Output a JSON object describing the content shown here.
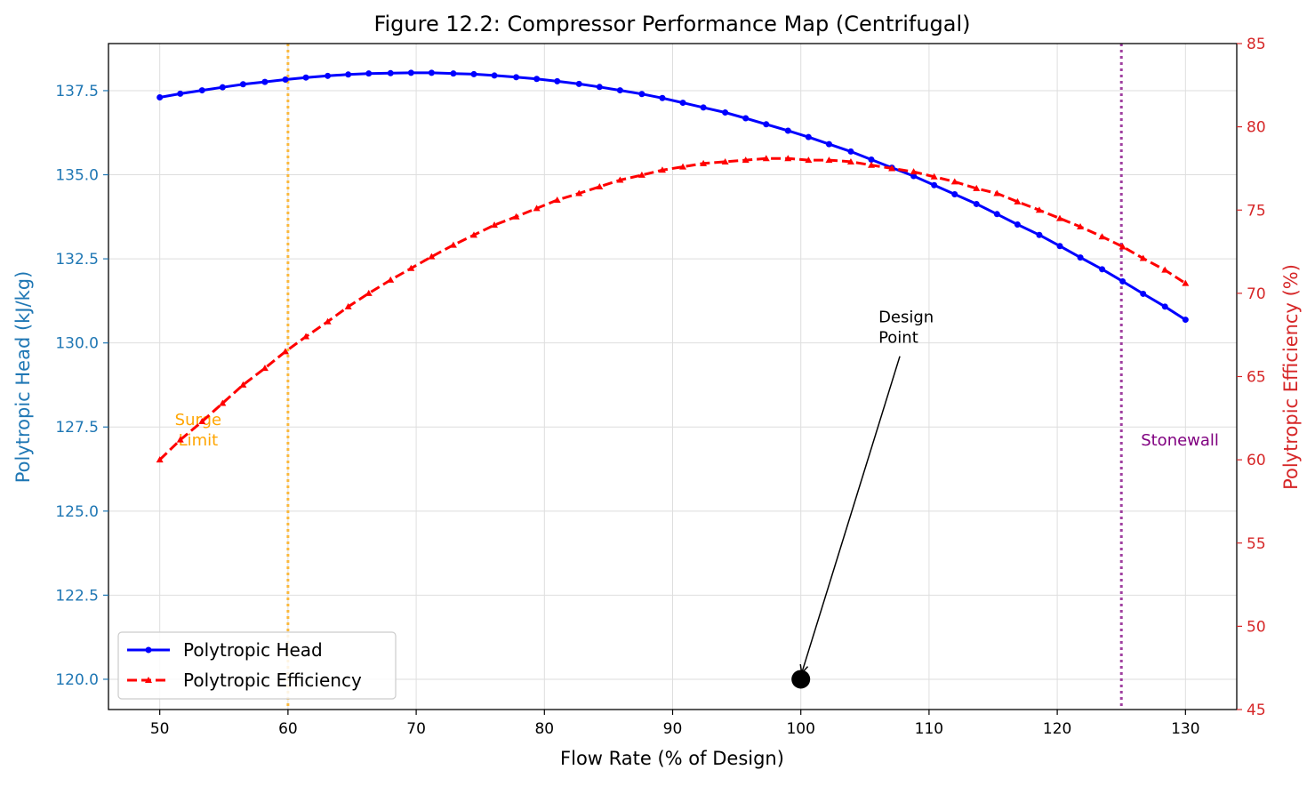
{
  "chart_data": {
    "type": "line",
    "title": "Figure 12.2: Compressor Performance Map (Centrifugal)",
    "xlabel": "Flow Rate (% of Design)",
    "ylabel_left": "Polytropic Head (kJ/kg)",
    "ylabel_right": "Polytropic Efficiency (%)",
    "xlim": [
      46,
      134
    ],
    "ylim_left": [
      119.1,
      138.9
    ],
    "ylim_right": [
      45,
      85
    ],
    "x_ticks": [
      50,
      60,
      70,
      80,
      90,
      100,
      110,
      120,
      130
    ],
    "y_left_ticks": [
      "120.0",
      "122.5",
      "125.0",
      "127.5",
      "130.0",
      "132.5",
      "135.0",
      "137.5"
    ],
    "y_right_ticks": [
      45,
      50,
      55,
      60,
      65,
      70,
      75,
      80,
      85
    ],
    "grid": true,
    "legend_position": "lower-left",
    "x": [
      50.0,
      51.6,
      53.3,
      54.9,
      56.5,
      58.2,
      59.8,
      61.4,
      63.1,
      64.7,
      66.3,
      68.0,
      69.6,
      71.2,
      72.9,
      74.5,
      76.1,
      77.8,
      79.4,
      81.0,
      82.7,
      84.3,
      85.9,
      87.6,
      89.2,
      90.8,
      92.4,
      94.1,
      95.7,
      97.3,
      99.0,
      100.6,
      102.2,
      103.9,
      105.5,
      107.1,
      108.8,
      110.4,
      112.0,
      113.7,
      115.3,
      116.9,
      118.6,
      120.2,
      121.8,
      123.5,
      125.1,
      126.7,
      128.4,
      130.0
    ],
    "series": [
      {
        "name": "Polytropic Head",
        "axis": "left",
        "color": "#0000ff",
        "line_style": "solid",
        "marker": "circle",
        "values": [
          137.3,
          137.41,
          137.51,
          137.6,
          137.69,
          137.76,
          137.83,
          137.89,
          137.94,
          137.98,
          138.01,
          138.02,
          138.03,
          138.03,
          138.01,
          137.99,
          137.95,
          137.9,
          137.85,
          137.78,
          137.7,
          137.61,
          137.51,
          137.4,
          137.28,
          137.14,
          137.0,
          136.85,
          136.68,
          136.5,
          136.31,
          136.12,
          135.91,
          135.69,
          135.45,
          135.21,
          134.96,
          134.69,
          134.42,
          134.13,
          133.83,
          133.52,
          133.21,
          132.88,
          132.54,
          132.19,
          131.83,
          131.46,
          131.08,
          130.69
        ]
      },
      {
        "name": "Polytropic Efficiency",
        "axis": "right",
        "color": "#ff0000",
        "line_style": "dashed",
        "marker": "triangle",
        "values": [
          60.0,
          61.2,
          62.3,
          63.4,
          64.5,
          65.5,
          66.5,
          67.4,
          68.3,
          69.2,
          70.0,
          70.8,
          71.5,
          72.2,
          72.9,
          73.5,
          74.1,
          74.6,
          75.1,
          75.6,
          76.0,
          76.4,
          76.8,
          77.1,
          77.4,
          77.6,
          77.8,
          77.9,
          78.0,
          78.1,
          78.1,
          78.0,
          78.0,
          77.9,
          77.7,
          77.5,
          77.3,
          77.0,
          76.7,
          76.3,
          76.0,
          75.5,
          75.0,
          74.5,
          74.0,
          73.4,
          72.8,
          72.1,
          71.4,
          70.6
        ]
      }
    ],
    "reference_lines": [
      {
        "x": 60,
        "label": "Surge\nLimit",
        "color": "#ffa500",
        "line_style": "dotted"
      },
      {
        "x": 125,
        "label": "Stonewall",
        "color": "#800080",
        "line_style": "dotted"
      }
    ],
    "annotations": [
      {
        "text": "Design\nPoint",
        "point_x": 100,
        "point_y_left": 120.0,
        "text_anchor_x": 108,
        "text_anchor_y_left": 130.0
      }
    ],
    "design_point": {
      "x": 100,
      "y_left": 120.0,
      "color": "#000000"
    }
  }
}
